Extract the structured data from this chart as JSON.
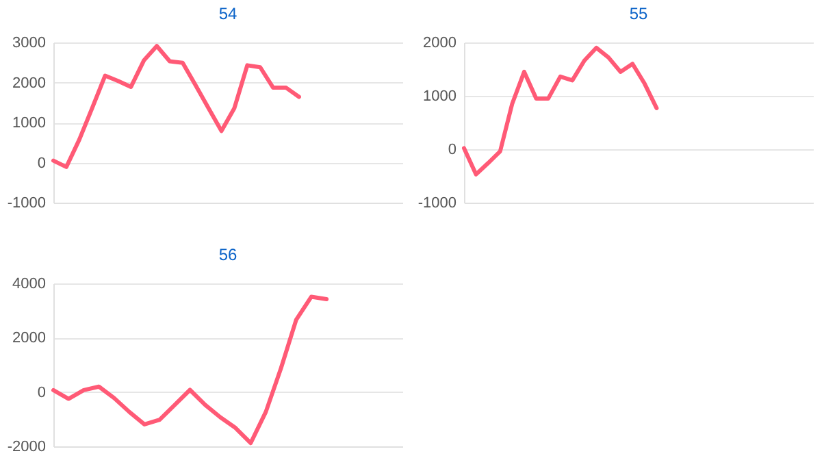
{
  "chart_data": [
    {
      "type": "line",
      "title": "54",
      "categories": [
        null,
        null,
        null,
        null,
        null,
        null,
        null,
        null,
        null,
        null,
        null,
        null,
        null,
        null,
        null,
        null,
        null,
        null,
        null,
        null,
        null,
        null,
        null,
        null,
        null,
        null,
        null,
        null
      ],
      "values": [
        50,
        -110,
        570,
        1360,
        2170,
        2040,
        1890,
        2550,
        2910,
        2530,
        2490,
        1930,
        1360,
        790,
        1360,
        2430,
        2380,
        1870,
        1870,
        1640,
        null,
        null,
        null,
        null,
        null,
        null,
        null,
        null
      ],
      "color": "#ff5a76",
      "ylim": [
        -1000,
        3000
      ],
      "yticks": [
        -1000,
        0,
        1000,
        2000,
        3000
      ],
      "grid": "y",
      "tick_labels": "y",
      "marker": "none",
      "line_style": "solid"
    },
    {
      "type": "line",
      "title": "55",
      "categories": [
        null,
        null,
        null,
        null,
        null,
        null,
        null,
        null,
        null,
        null,
        null,
        null,
        null,
        null,
        null,
        null,
        null,
        null,
        null,
        null,
        null,
        null,
        null,
        null,
        null,
        null,
        null,
        null,
        null,
        null
      ],
      "values": [
        20,
        -470,
        -260,
        -40,
        850,
        1450,
        950,
        950,
        1360,
        1290,
        1660,
        1900,
        1720,
        1450,
        1600,
        1230,
        770,
        null,
        null,
        null,
        null,
        null,
        null,
        null,
        null,
        null,
        null,
        null,
        null,
        null
      ],
      "color": "#ff5a76",
      "ylim": [
        -1000,
        2000
      ],
      "yticks": [
        -1000,
        0,
        1000,
        2000
      ],
      "grid": "y",
      "tick_labels": "y",
      "marker": "none",
      "line_style": "solid"
    },
    {
      "type": "line",
      "title": "56",
      "categories": [
        null,
        null,
        null,
        null,
        null,
        null,
        null,
        null,
        null,
        null,
        null,
        null,
        null,
        null,
        null,
        null,
        null,
        null,
        null,
        null,
        null,
        null,
        null,
        null
      ],
      "values": [
        70,
        -250,
        70,
        200,
        -220,
        -730,
        -1190,
        -1020,
        -470,
        80,
        -470,
        -930,
        -1320,
        -1880,
        -730,
        880,
        2660,
        3510,
        3420,
        null,
        null,
        null,
        null,
        null
      ],
      "color": "#ff5a76",
      "ylim": [
        -2000,
        4000
      ],
      "yticks": [
        -2000,
        0,
        2000,
        4000
      ],
      "grid": "y",
      "tick_labels": "y",
      "marker": "none",
      "line_style": "solid"
    }
  ]
}
